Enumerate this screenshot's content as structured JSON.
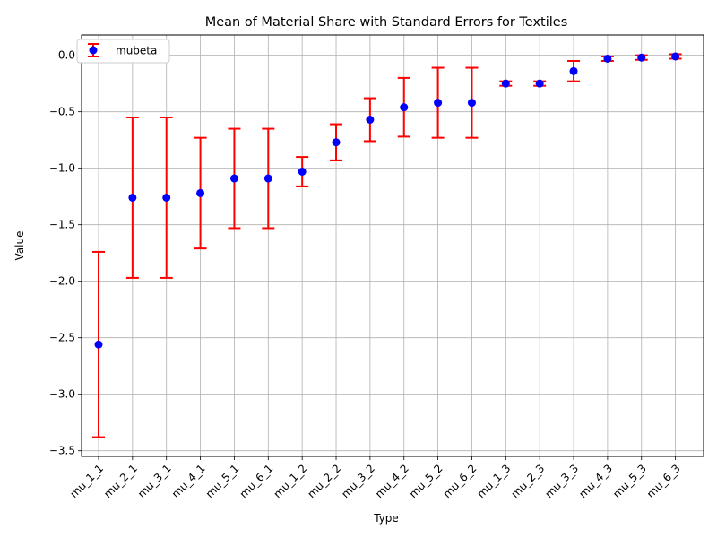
{
  "chart_data": {
    "type": "scatter",
    "title": "Mean of Material Share with Standard Errors for Textiles",
    "xlabel": "Type",
    "ylabel": "Value",
    "ylim": [
      -3.55,
      0.18
    ],
    "yticks": [
      0.0,
      -0.5,
      -1.0,
      -1.5,
      -2.0,
      -2.5,
      -3.0,
      -3.5
    ],
    "ytick_labels": [
      "0.0",
      "−0.5",
      "−1.0",
      "−1.5",
      "−2.0",
      "−2.5",
      "−3.0",
      "−3.5"
    ],
    "grid": true,
    "legend_position": "top-left",
    "marker_color": "#0000ff",
    "errorbar_color": "#ff0000",
    "categories": [
      "mu_1_1",
      "mu_2_1",
      "mu_3_1",
      "mu_4_1",
      "mu_5_1",
      "mu_6_1",
      "mu_1_2",
      "mu_2_2",
      "mu_3_2",
      "mu_4_2",
      "mu_5_2",
      "mu_6_2",
      "mu_1_3",
      "mu_2_3",
      "mu_3_3",
      "mu_4_3",
      "mu_5_3",
      "mu_6_3"
    ],
    "series": [
      {
        "name": "mubeta",
        "values": [
          -2.56,
          -1.26,
          -1.26,
          -1.22,
          -1.09,
          -1.09,
          -1.03,
          -0.77,
          -0.57,
          -0.46,
          -0.42,
          -0.42,
          -0.25,
          -0.25,
          -0.14,
          -0.03,
          -0.02,
          -0.01
        ],
        "errors": [
          0.82,
          0.71,
          0.71,
          0.49,
          0.44,
          0.44,
          0.13,
          0.16,
          0.19,
          0.26,
          0.31,
          0.31,
          0.02,
          0.02,
          0.09,
          0.02,
          0.02,
          0.02
        ]
      }
    ]
  }
}
